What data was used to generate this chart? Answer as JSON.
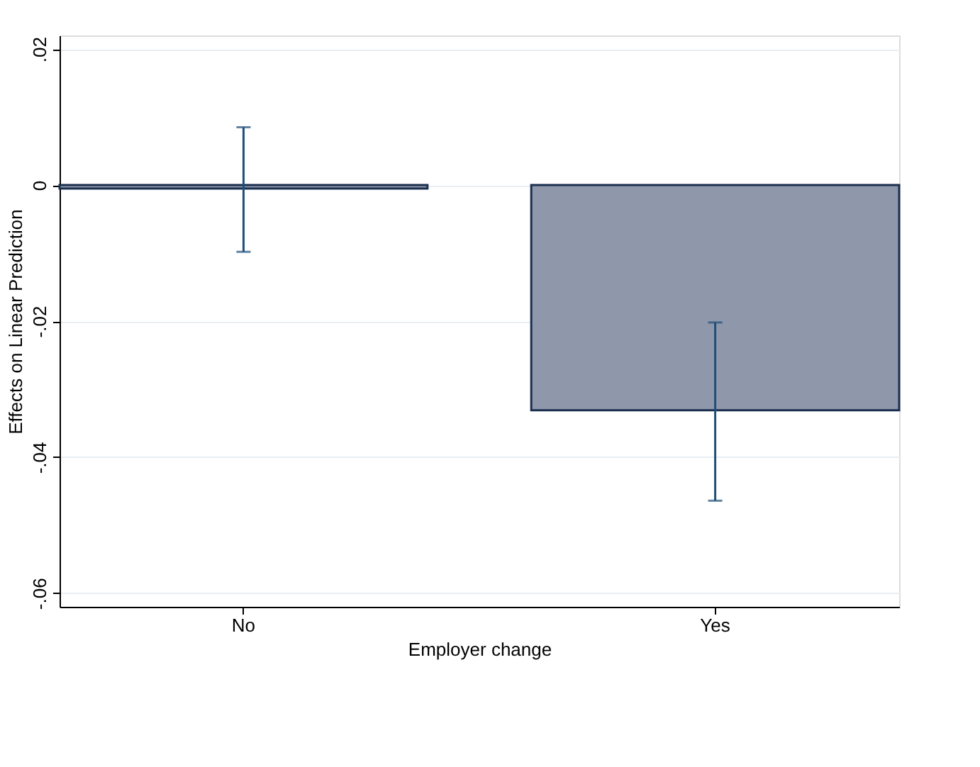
{
  "chart_data": {
    "type": "bar",
    "xlabel": "Employer change",
    "ylabel": "Effects on Linear Prediction",
    "categories": [
      "No",
      "Yes"
    ],
    "series": [
      {
        "color": "#8f97aa",
        "values": [
          -0.0005,
          -0.0331
        ],
        "errors": [
          [
            -0.0098,
            0.0085
          ],
          [
            -0.0464,
            -0.0202
          ]
        ]
      }
    ],
    "ylim": [
      -0.062,
      0.022
    ],
    "yticks": [
      {
        "value": -0.06,
        "label": "-.06"
      },
      {
        "value": -0.04,
        "label": "-.04"
      },
      {
        "value": -0.02,
        "label": "-.02"
      },
      0,
      {
        "value": 0.02,
        "label": ".02"
      }
    ],
    "grid": "y"
  }
}
